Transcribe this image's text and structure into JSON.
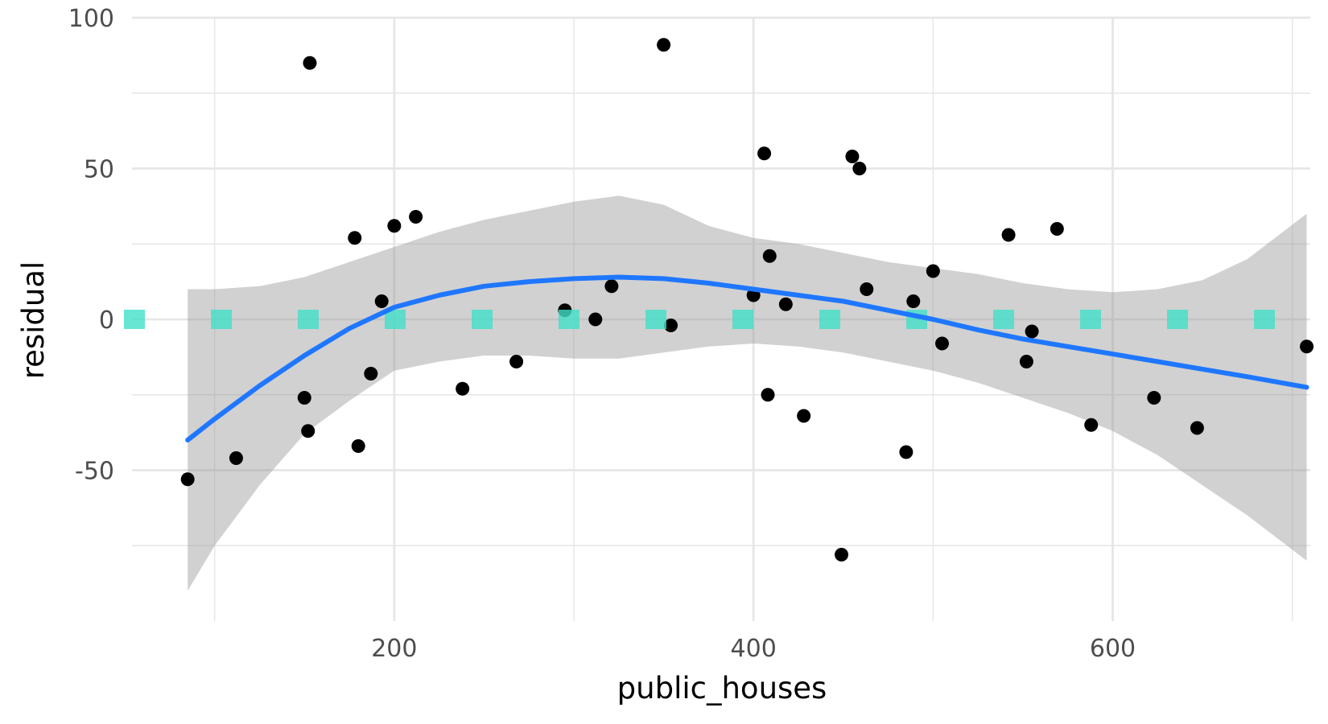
{
  "chart_data": {
    "type": "scatter",
    "xlabel": "public_houses",
    "ylabel": "residual",
    "xlim": [
      54,
      710
    ],
    "ylim": [
      -100,
      100
    ],
    "x_ticks": [
      200,
      400,
      600
    ],
    "x_minor_ticks": [
      100,
      300,
      500,
      700
    ],
    "y_ticks": [
      100,
      50,
      0,
      -50
    ],
    "y_minor_ticks": [
      75,
      25,
      -25,
      -75
    ],
    "grid": true,
    "legend": "none",
    "colors": {
      "points": "#000000",
      "smooth_line": "#1f77ff",
      "confidence_band": "#999999",
      "zero_line": "#40e0c8",
      "grid": "#e6e6e6"
    },
    "series": [
      {
        "type": "scatter",
        "points": [
          [
            85,
            -53
          ],
          [
            112,
            -46
          ],
          [
            150,
            -26
          ],
          [
            152,
            -37
          ],
          [
            153,
            85
          ],
          [
            178,
            27
          ],
          [
            180,
            -42
          ],
          [
            187,
            -18
          ],
          [
            193,
            6
          ],
          [
            200,
            31
          ],
          [
            212,
            34
          ],
          [
            238,
            -23
          ],
          [
            268,
            -14
          ],
          [
            295,
            3
          ],
          [
            312,
            0
          ],
          [
            321,
            11
          ],
          [
            350,
            91
          ],
          [
            354,
            -2
          ],
          [
            400,
            8
          ],
          [
            406,
            55
          ],
          [
            408,
            -25
          ],
          [
            409,
            21
          ],
          [
            418,
            5
          ],
          [
            428,
            -32
          ],
          [
            449,
            -78
          ],
          [
            455,
            54
          ],
          [
            459,
            50
          ],
          [
            463,
            10
          ],
          [
            485,
            -44
          ],
          [
            489,
            6
          ],
          [
            500,
            16
          ],
          [
            505,
            -8
          ],
          [
            542,
            28
          ],
          [
            552,
            -14
          ],
          [
            555,
            -4
          ],
          [
            569,
            30
          ],
          [
            588,
            -35
          ],
          [
            623,
            -26
          ],
          [
            647,
            -36
          ],
          [
            708,
            -9
          ]
        ]
      },
      {
        "type": "line",
        "x": [
          85,
          100,
          125,
          150,
          175,
          200,
          225,
          250,
          275,
          300,
          325,
          350,
          375,
          400,
          425,
          450,
          475,
          500,
          525,
          550,
          575,
          600,
          625,
          650,
          675,
          708
        ],
        "y": [
          -40,
          -33,
          -22,
          -12,
          -3,
          4,
          8,
          11,
          12.5,
          13.5,
          14,
          13.5,
          12,
          10,
          8,
          6,
          3,
          0,
          -3.5,
          -6.5,
          -9,
          -11.5,
          -14,
          -16.5,
          -19,
          -22.5
        ]
      },
      {
        "type": "area",
        "x": [
          85,
          100,
          125,
          150,
          175,
          200,
          225,
          250,
          275,
          300,
          325,
          350,
          375,
          400,
          425,
          450,
          475,
          500,
          525,
          550,
          575,
          600,
          625,
          650,
          675,
          708
        ],
        "y_upper": [
          10,
          10,
          11,
          14,
          19,
          24,
          29,
          33,
          36,
          39,
          41,
          38,
          31,
          27,
          25,
          22,
          19,
          17,
          15,
          12,
          10,
          9,
          10,
          13,
          20,
          35
        ],
        "y_lower": [
          -90,
          -75,
          -55,
          -38,
          -27,
          -17,
          -14,
          -12,
          -12,
          -13,
          -13,
          -11,
          -9,
          -8,
          -9,
          -11,
          -14,
          -17,
          -21,
          -26,
          -31,
          -37,
          -45,
          -55,
          -65,
          -80
        ]
      },
      {
        "type": "line",
        "y": [
          0,
          0
        ]
      }
    ]
  }
}
